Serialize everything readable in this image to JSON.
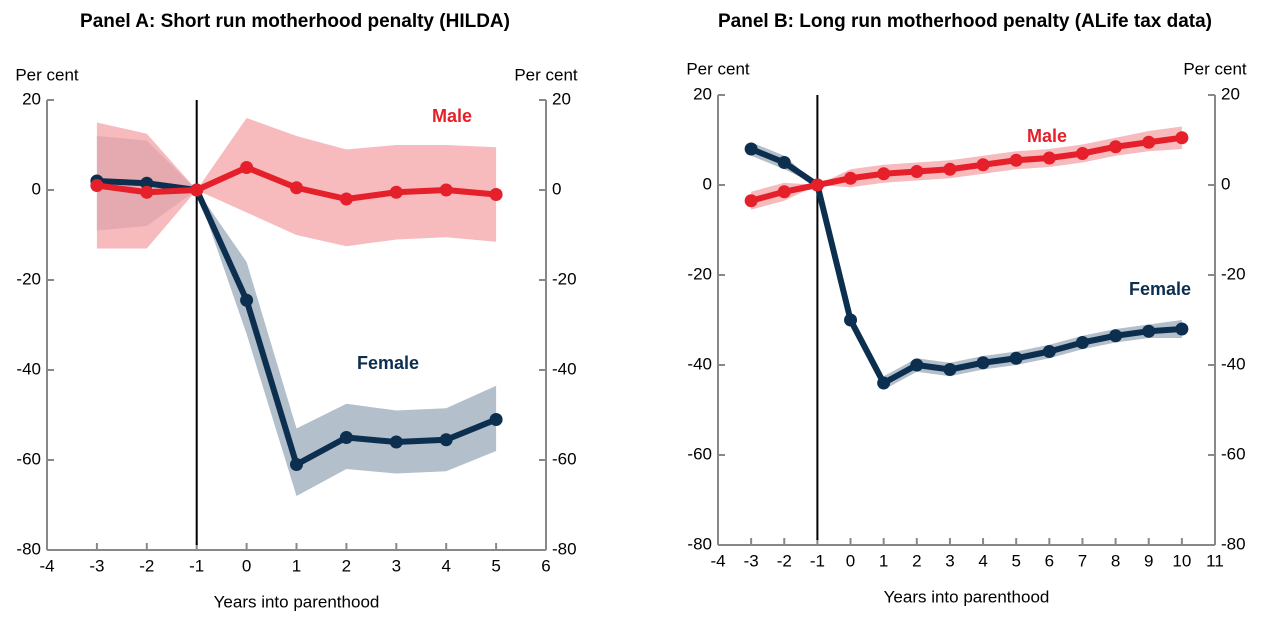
{
  "chart_data": [
    {
      "type": "line",
      "title": "Panel A: Short run motherhood penalty (HILDA)",
      "y_label": "Per cent",
      "y2_label": "Per cent",
      "x_label": "Years into parenthood",
      "x": [
        -3,
        -2,
        -1,
        0,
        1,
        2,
        3,
        4,
        5
      ],
      "series": [
        {
          "name": "Female",
          "color": "#0d2f4f",
          "band_color": "#9aaab8",
          "values": [
            2,
            1.5,
            0,
            -24.5,
            -61,
            -55,
            -56,
            -55.5,
            -51
          ],
          "upper": [
            12,
            11,
            0,
            -16,
            -53,
            -47.5,
            -49,
            -48.5,
            -43.5
          ],
          "lower": [
            -9,
            -8,
            0,
            -32,
            -68,
            -62,
            -63,
            -62.5,
            -58
          ]
        },
        {
          "name": "Male",
          "color": "#e5202a",
          "band_color": "#f4a3a7",
          "values": [
            1,
            -0.5,
            0,
            5,
            0.5,
            -2,
            -0.5,
            0,
            -1
          ],
          "upper": [
            15,
            12.5,
            0,
            16,
            12,
            9,
            10,
            10,
            9.5
          ],
          "lower": [
            -13,
            -13,
            0,
            -5,
            -10,
            -12.5,
            -11,
            -10.5,
            -11.5
          ]
        }
      ],
      "xlim": [
        -4,
        6
      ],
      "xticks": [
        -4,
        -3,
        -2,
        -1,
        0,
        1,
        2,
        3,
        4,
        5,
        6
      ],
      "ylim": [
        -80,
        20
      ],
      "yticks": [
        -80,
        -60,
        -40,
        -20,
        0,
        20
      ],
      "vline": -1
    },
    {
      "type": "line",
      "title": "Panel B: Long run motherhood penalty (ALife tax data)",
      "y_label": "Per cent",
      "y2_label": "Per cent",
      "x_label": "Years into parenthood",
      "x": [
        -3,
        -2,
        -1,
        0,
        1,
        2,
        3,
        4,
        5,
        6,
        7,
        8,
        9,
        10
      ],
      "series": [
        {
          "name": "Female",
          "color": "#0d2f4f",
          "band_color": "#9aaab8",
          "values": [
            8,
            5,
            0,
            -30,
            -44,
            -40,
            -41,
            -39.5,
            -38.5,
            -37,
            -35,
            -33.5,
            -32.5,
            -32
          ],
          "upper": [
            9.5,
            6.5,
            0,
            -28.5,
            -42.5,
            -38.5,
            -39.5,
            -38,
            -37,
            -35.5,
            -33.5,
            -32,
            -31,
            -30
          ],
          "lower": [
            6.5,
            3.5,
            0,
            -31.5,
            -45.5,
            -41.5,
            -42.5,
            -41,
            -40,
            -38.5,
            -36.5,
            -35,
            -34,
            -34
          ]
        },
        {
          "name": "Male",
          "color": "#e5202a",
          "band_color": "#f4a3a7",
          "values": [
            -3.5,
            -1.5,
            0,
            1.5,
            2.5,
            3,
            3.5,
            4.5,
            5.5,
            6,
            7,
            8.5,
            9.5,
            10.5
          ],
          "upper": [
            -1.5,
            0.5,
            0,
            3.5,
            4.5,
            5,
            5.5,
            6.5,
            7.5,
            8,
            9,
            10.5,
            12,
            13
          ],
          "lower": [
            -5.5,
            -3.5,
            0,
            -0.5,
            0.5,
            1,
            1.5,
            2.5,
            3.5,
            4,
            5,
            6.5,
            7.5,
            8
          ]
        }
      ],
      "xlim": [
        -4,
        11
      ],
      "xticks": [
        -4,
        -3,
        -2,
        -1,
        0,
        1,
        2,
        3,
        4,
        5,
        6,
        7,
        8,
        9,
        10,
        11
      ],
      "ylim": [
        -80,
        20
      ],
      "yticks": [
        -80,
        -60,
        -40,
        -20,
        0,
        20
      ],
      "vline": -1
    }
  ]
}
